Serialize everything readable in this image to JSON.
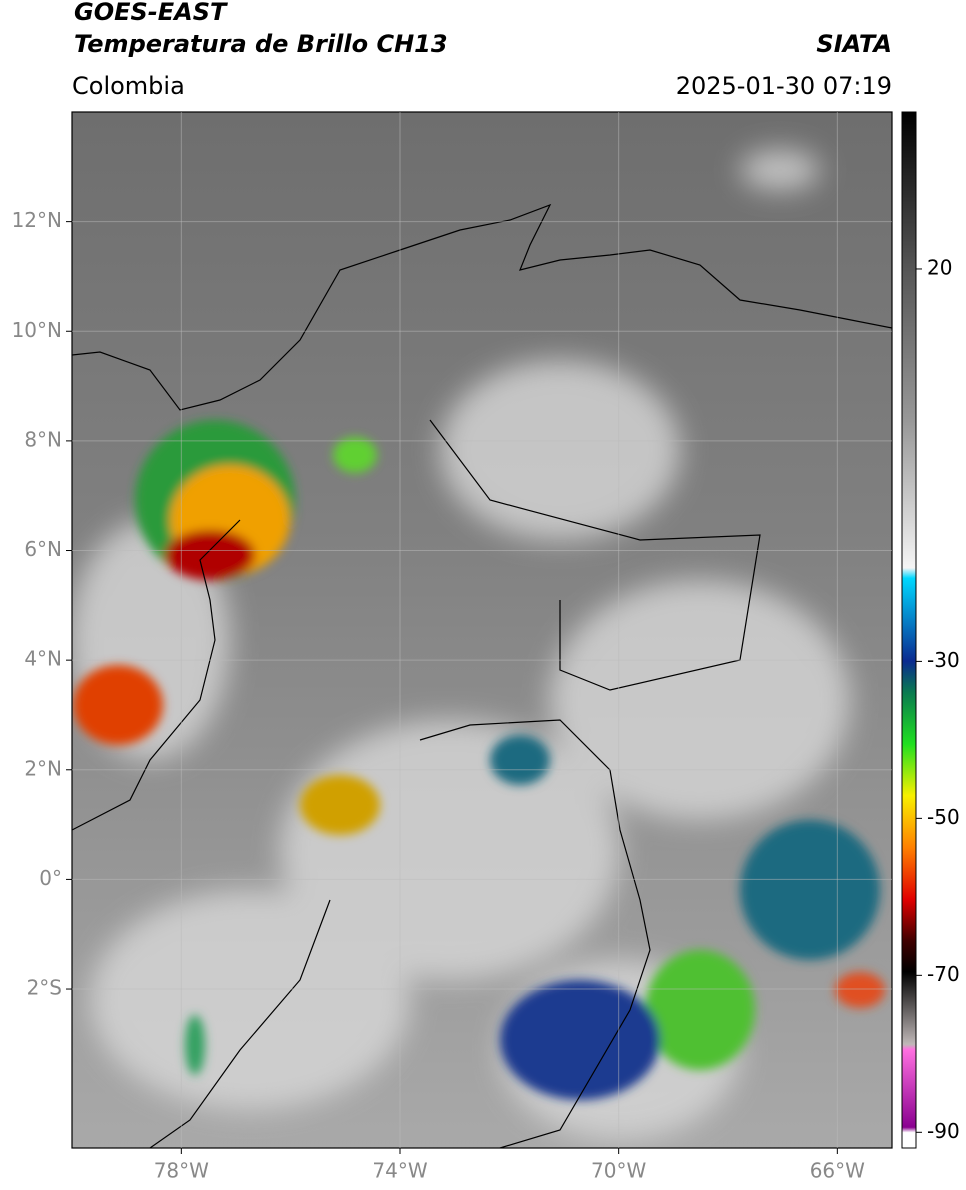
{
  "header": {
    "satellite": "GOES-EAST",
    "product": "Temperatura de Brillo CH13",
    "agency": "SIATA",
    "region": "Colombia",
    "datetime": "2025-01-30 07:19"
  },
  "map": {
    "latlim": [
      -4.9,
      14.0
    ],
    "lonlim": [
      -80,
      -65
    ],
    "lat_ticks": [
      {
        "value": 12,
        "label": "12°N"
      },
      {
        "value": 10,
        "label": "10°N"
      },
      {
        "value": 8,
        "label": "8°N"
      },
      {
        "value": 6,
        "label": "6°N"
      },
      {
        "value": 4,
        "label": "4°N"
      },
      {
        "value": 2,
        "label": "2°N"
      },
      {
        "value": 0,
        "label": "0°"
      },
      {
        "value": -2,
        "label": "2°S"
      }
    ],
    "lon_ticks": [
      {
        "value": -78,
        "label": "78°W"
      },
      {
        "value": -74,
        "label": "74°W"
      },
      {
        "value": -70,
        "label": "70°W"
      },
      {
        "value": -66,
        "label": "66°W"
      }
    ]
  },
  "colorbar": {
    "lim": [
      -92,
      40
    ],
    "ticks": [
      20,
      -30,
      -50,
      -70,
      -90
    ]
  }
}
